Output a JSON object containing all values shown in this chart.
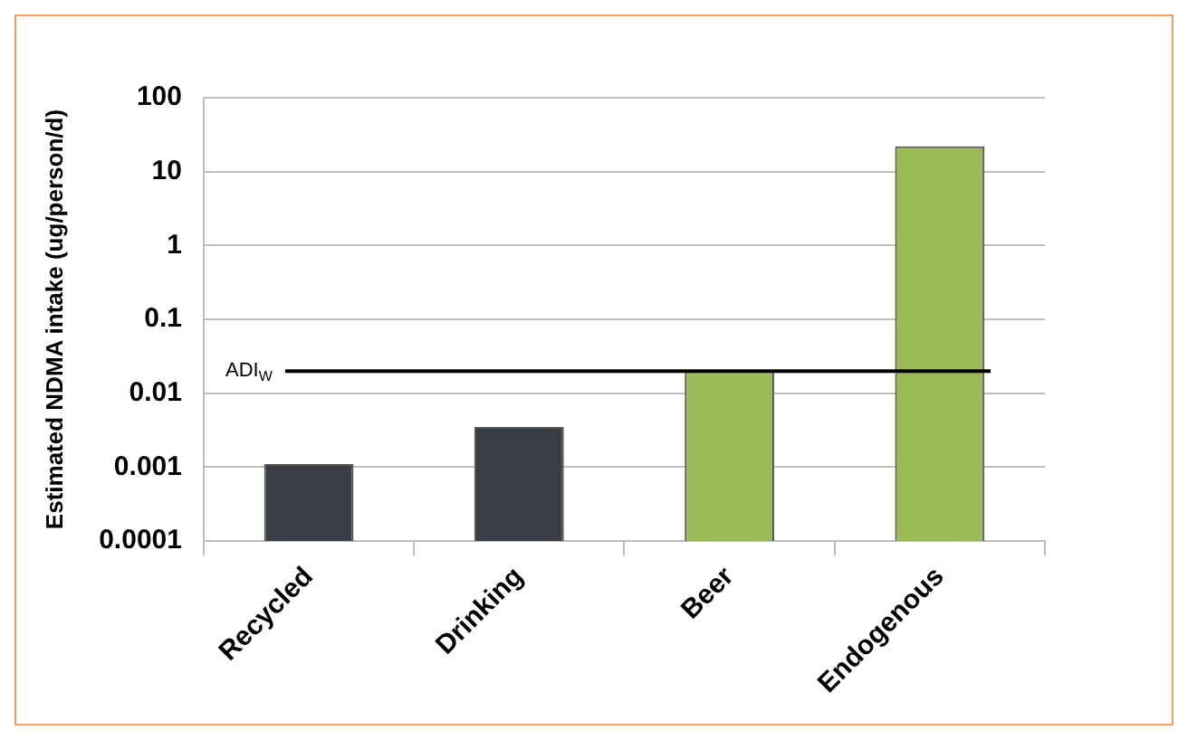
{
  "chart_data": {
    "type": "bar",
    "ylabel": "Estimated NDMA intake (ug/person/d)",
    "categories": [
      "Recycled",
      "Drinking",
      "Beer",
      "Endogenous"
    ],
    "values": [
      0.0011,
      0.0035,
      0.02,
      22
    ],
    "colors": [
      "#3a3c47",
      "#3a3c47",
      "#9bbb59",
      "#9bbb59"
    ],
    "log": "y",
    "ylim": [
      0.0001,
      100
    ],
    "yticks": [
      0.0001,
      0.001,
      0.01,
      0.1,
      1,
      10,
      100
    ],
    "grid": "y",
    "legend": false,
    "ref_lines": [
      {
        "axis": "y",
        "value": 0.02,
        "label": "ADI$_{W}$",
        "color": "#000000"
      }
    ]
  }
}
